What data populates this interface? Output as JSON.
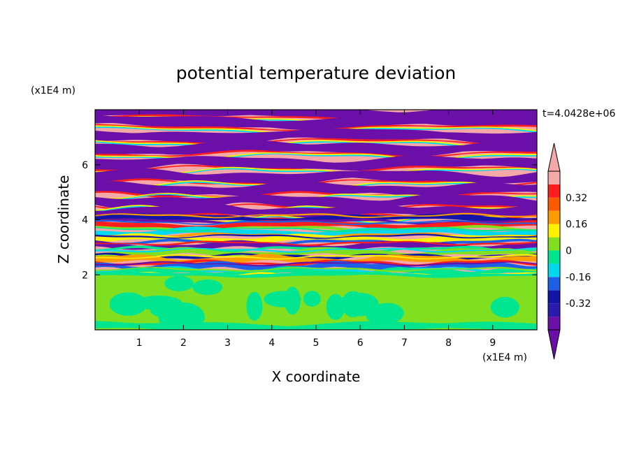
{
  "chart_data": {
    "type": "heatmap",
    "title": "potential temperature deviation",
    "xlabel": "X coordinate",
    "ylabel": "Z coordinate",
    "x_unit": "(x1E4 m)",
    "y_unit": "(x1E4 m)",
    "time_label": "t=4.0428e+06",
    "x_ticks": [
      "1",
      "2",
      "3",
      "4",
      "5",
      "6",
      "7",
      "8",
      "9"
    ],
    "y_ticks": [
      "2",
      "4",
      "6"
    ],
    "xlim": [
      0,
      10
    ],
    "ylim": [
      0,
      8
    ],
    "colorbar": {
      "tick_labels": [
        "0.32",
        "0.16",
        "0",
        "-0.16",
        "-0.32"
      ],
      "tick_values": [
        0.32,
        0.16,
        0,
        -0.16,
        -0.32
      ],
      "levels": [
        {
          "min": -0.48,
          "max": -0.4,
          "color": "#6a0fa8"
        },
        {
          "min": -0.4,
          "max": -0.32,
          "color": "#2a1ab0"
        },
        {
          "min": -0.32,
          "max": -0.24,
          "color": "#1414a8"
        },
        {
          "min": -0.24,
          "max": -0.16,
          "color": "#1e5fe8"
        },
        {
          "min": -0.16,
          "max": -0.08,
          "color": "#00d8f0"
        },
        {
          "min": -0.08,
          "max": 0,
          "color": "#00e690"
        },
        {
          "min": 0,
          "max": 0.08,
          "color": "#80e020"
        },
        {
          "min": 0.08,
          "max": 0.16,
          "color": "#fff000"
        },
        {
          "min": 0.16,
          "max": 0.24,
          "color": "#ff9c00"
        },
        {
          "min": 0.24,
          "max": 0.32,
          "color": "#ff5a00"
        },
        {
          "min": 0.32,
          "max": 0.4,
          "color": "#ff1e1e"
        },
        {
          "min": 0.4,
          "max": 0.48,
          "color": "#f4a8a8"
        }
      ],
      "under_color": "#6a0fa8",
      "over_color": "#f4a8a8"
    }
  }
}
